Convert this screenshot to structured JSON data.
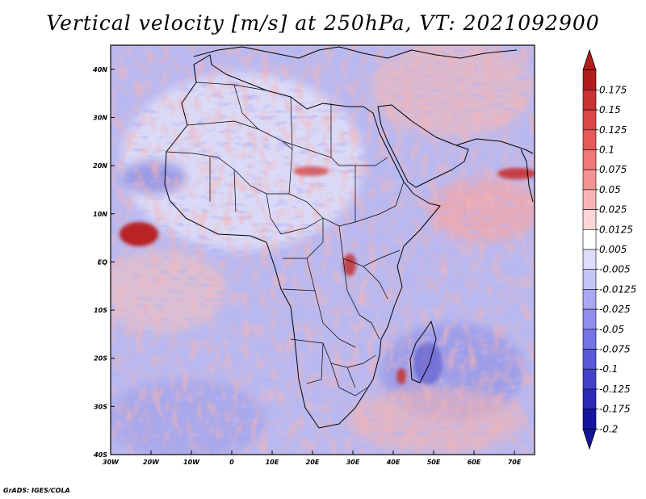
{
  "title": "Vertical velocity [m/s] at 250hPa, VT: 2021092900",
  "credit": "GrADS: IGES/COLA",
  "map": {
    "lon_range": [
      -30,
      75
    ],
    "lat_range": [
      -40,
      45
    ],
    "lon_ticks": [
      {
        "value": -30,
        "label": "30W"
      },
      {
        "value": -20,
        "label": "20W"
      },
      {
        "value": -10,
        "label": "10W"
      },
      {
        "value": 0,
        "label": "0"
      },
      {
        "value": 10,
        "label": "10E"
      },
      {
        "value": 20,
        "label": "20E"
      },
      {
        "value": 30,
        "label": "30E"
      },
      {
        "value": 40,
        "label": "40E"
      },
      {
        "value": 50,
        "label": "50E"
      },
      {
        "value": 60,
        "label": "60E"
      },
      {
        "value": 70,
        "label": "70E"
      }
    ],
    "lat_ticks": [
      {
        "value": 40,
        "label": "40N"
      },
      {
        "value": 30,
        "label": "30N"
      },
      {
        "value": 20,
        "label": "20N"
      },
      {
        "value": 10,
        "label": "10N"
      },
      {
        "value": 0,
        "label": "EQ"
      },
      {
        "value": -10,
        "label": "10S"
      },
      {
        "value": -20,
        "label": "20S"
      },
      {
        "value": -30,
        "label": "30S"
      },
      {
        "value": -40,
        "label": "40S"
      }
    ]
  },
  "colorbar": {
    "labels": [
      "0.175",
      "0.15",
      "0.125",
      "0.1",
      "0.075",
      "0.05",
      "0.025",
      "0.0125",
      "0.005",
      "-0.005",
      "-0.0125",
      "-0.025",
      "-0.05",
      "-0.075",
      "-0.1",
      "-0.125",
      "-0.175",
      "-0.2"
    ],
    "colors": [
      "#b01c1c",
      "#c83232",
      "#dc4646",
      "#e85a5a",
      "#ee7878",
      "#f39494",
      "#f8b4b4",
      "#fcd6d6",
      "#ffffff",
      "#dcdcfc",
      "#c4c4f8",
      "#a8a8f2",
      "#8e8eec",
      "#7474e6",
      "#5a5ad8",
      "#4242c8",
      "#2a2ab4",
      "#14149c"
    ]
  }
}
